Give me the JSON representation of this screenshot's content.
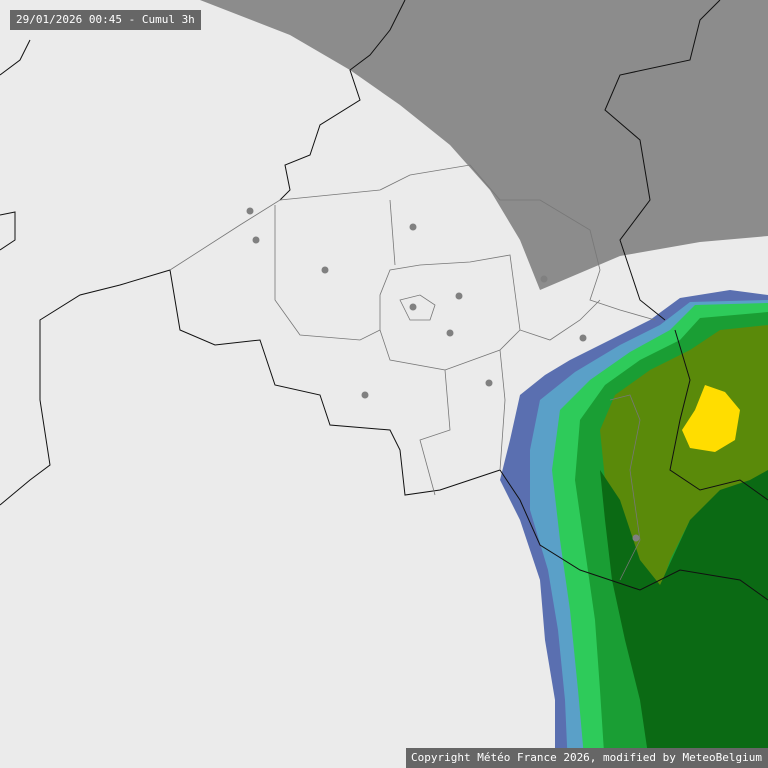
{
  "map": {
    "title": "29/01/2026 00:45 - Cumul 3h",
    "copyright": "Copyright Météo France 2026, modified by MeteoBelgium",
    "colors": {
      "background": "#ebebeb",
      "out_of_range": "#8c8c8c",
      "precip_levels": [
        "#5a6fb0",
        "#5aa0c8",
        "#2ecb5a",
        "#1a9e34",
        "#5a8a0a",
        "#0b6a14",
        "#ffdd00"
      ]
    },
    "icons": [
      "city-dot-icon"
    ]
  }
}
